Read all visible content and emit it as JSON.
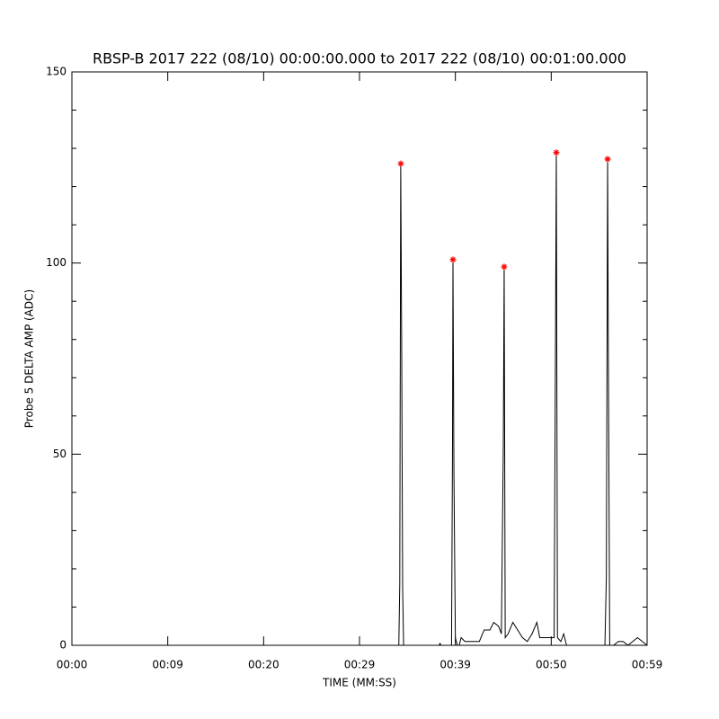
{
  "chart_data": {
    "type": "line",
    "title": "RBSP-B 2017 222 (08/10) 00:00:00.000 to 2017 222 (08/10) 00:01:00.000",
    "xlabel": "TIME (MM:SS)",
    "ylabel": "Probe 5 DELTA AMP (ADC)",
    "xlim": [
      0,
      60
    ],
    "ylim": [
      0,
      150
    ],
    "xticks": [
      {
        "value": 0,
        "label": "00:00"
      },
      {
        "value": 10,
        "label": "00:09"
      },
      {
        "value": 20,
        "label": "00:20"
      },
      {
        "value": 30,
        "label": "00:29"
      },
      {
        "value": 40,
        "label": "00:39"
      },
      {
        "value": 50,
        "label": "00:50"
      },
      {
        "value": 60,
        "label": "00:59"
      }
    ],
    "yticks": [
      0,
      50,
      100,
      150
    ],
    "yminor_ticks": [
      10,
      20,
      30,
      40,
      60,
      70,
      80,
      90,
      110,
      120,
      130,
      140
    ],
    "series": [
      {
        "color": "#000000",
        "x": [
          0,
          34.1,
          34.2,
          34.3,
          34.4,
          34.5,
          34.6,
          38.3,
          38.4,
          38.5,
          39.6,
          39.7,
          39.75,
          39.85,
          40.0,
          40.2,
          40.4,
          40.6,
          41.0,
          41.5,
          42.0,
          42.5,
          43.0,
          43.6,
          44.0,
          44.5,
          44.8,
          45.0,
          45.09,
          45.2,
          45.5,
          46.0,
          46.5,
          47.0,
          47.5,
          48.0,
          48.5,
          48.8,
          49.5,
          50.3,
          50.45,
          50.53,
          50.65,
          51.0,
          51.3,
          51.6,
          55.6,
          55.75,
          55.88,
          55.95,
          56.1,
          56.5,
          57.0,
          57.5,
          58.0,
          59.0,
          59.5,
          60
        ],
        "values": [
          0,
          0,
          16,
          126,
          78,
          15,
          0,
          0,
          0.5,
          0,
          0,
          51,
          101,
          45,
          2,
          0,
          0,
          2,
          1,
          1,
          1,
          1,
          4,
          4,
          6,
          5,
          3,
          52,
          99,
          2,
          3,
          6,
          4,
          2,
          1,
          3,
          6,
          2,
          2,
          2,
          83,
          129,
          2,
          1,
          3,
          0,
          0,
          18,
          127,
          82,
          0,
          0,
          1,
          1,
          0,
          2,
          1,
          0
        ]
      },
      {
        "color": "#ff0000",
        "marker": "star",
        "x": [
          34.31,
          39.75,
          45.09,
          50.53,
          55.88
        ],
        "values": [
          126,
          100.9,
          99,
          128.9,
          127.2
        ]
      }
    ]
  }
}
